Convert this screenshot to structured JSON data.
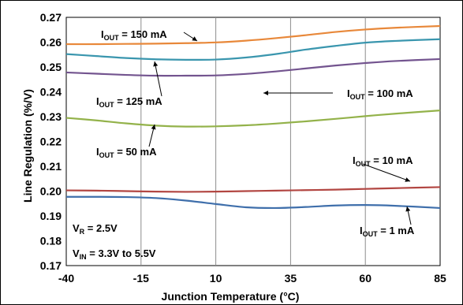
{
  "chart_data": {
    "type": "line",
    "xlabel": "Junction Temperature (°C)",
    "ylabel": "Line Regulation (%/V)",
    "xlim": [
      -40,
      85
    ],
    "ylim": [
      0.17,
      0.27
    ],
    "x_ticks": [
      "-40",
      "-15",
      "10",
      "35",
      "60",
      "85"
    ],
    "y_ticks": [
      "0.17",
      "0.18",
      "0.19",
      "0.20",
      "0.21",
      "0.22",
      "0.23",
      "0.24",
      "0.25",
      "0.26",
      "0.27"
    ],
    "grid": "vertical",
    "legend": "none",
    "series": [
      {
        "name": "IOUT = 150 mA",
        "color": "#e8883a",
        "x": [
          -40,
          -30,
          -20,
          -10,
          0,
          10,
          20,
          30,
          40,
          50,
          60,
          70,
          85
        ],
        "y": [
          0.2592,
          0.2592,
          0.2593,
          0.2594,
          0.2596,
          0.2599,
          0.2606,
          0.2616,
          0.2628,
          0.2641,
          0.2651,
          0.2658,
          0.2665
        ]
      },
      {
        "name": "IOUT = 125 mA",
        "color": "#3a96ae",
        "x": [
          -40,
          -30,
          -20,
          -10,
          0,
          10,
          20,
          30,
          40,
          50,
          60,
          70,
          85
        ],
        "y": [
          0.2552,
          0.2544,
          0.2536,
          0.2531,
          0.2529,
          0.253,
          0.2538,
          0.2552,
          0.257,
          0.2585,
          0.2598,
          0.2605,
          0.2612
        ]
      },
      {
        "name": "IOUT = 100 mA",
        "color": "#73548f",
        "x": [
          -40,
          -30,
          -20,
          -10,
          0,
          10,
          20,
          30,
          40,
          50,
          60,
          70,
          85
        ],
        "y": [
          0.2478,
          0.2473,
          0.2468,
          0.2465,
          0.2465,
          0.2466,
          0.2472,
          0.2482,
          0.2494,
          0.2506,
          0.2516,
          0.2524,
          0.2532
        ]
      },
      {
        "name": "IOUT = 50 mA",
        "color": "#93b24a",
        "x": [
          -40,
          -30,
          -20,
          -10,
          0,
          10,
          20,
          30,
          40,
          50,
          60,
          70,
          85
        ],
        "y": [
          0.2295,
          0.2285,
          0.2273,
          0.2264,
          0.226,
          0.2261,
          0.2265,
          0.2272,
          0.2281,
          0.2291,
          0.2302,
          0.2312,
          0.2325
        ]
      },
      {
        "name": "IOUT = 10 mA",
        "color": "#b24642",
        "x": [
          -40,
          -30,
          -20,
          -10,
          0,
          10,
          20,
          30,
          40,
          50,
          60,
          70,
          85
        ],
        "y": [
          0.2003,
          0.2002,
          0.2,
          0.1998,
          0.1997,
          0.1998,
          0.2,
          0.2002,
          0.2004,
          0.2006,
          0.2009,
          0.2012,
          0.2016
        ]
      },
      {
        "name": "IOUT = 1 mA",
        "color": "#3f6fab",
        "x": [
          -40,
          -30,
          -20,
          -10,
          0,
          10,
          20,
          30,
          40,
          50,
          60,
          70,
          85
        ],
        "y": [
          0.1977,
          0.1977,
          0.1976,
          0.1972,
          0.1962,
          0.1948,
          0.1935,
          0.1932,
          0.1936,
          0.1942,
          0.1944,
          0.1941,
          0.1932
        ]
      }
    ],
    "annotations": [
      {
        "main": "I",
        "sub": "OUT",
        "rest": " = 150 mA"
      },
      {
        "main": "I",
        "sub": "OUT",
        "rest": " = 125 mA"
      },
      {
        "main": "I",
        "sub": "OUT",
        "rest": " = 100 mA"
      },
      {
        "main": "I",
        "sub": "OUT",
        "rest": " = 50 mA"
      },
      {
        "main": "I",
        "sub": "OUT",
        "rest": " = 10 mA"
      },
      {
        "main": "I",
        "sub": "OUT",
        "rest": " = 1 mA"
      },
      {
        "main": "V",
        "sub": "R",
        "rest": " = 2.5V"
      },
      {
        "main": "V",
        "sub": "IN",
        "rest": " =  3.3V to 5.5V"
      }
    ]
  }
}
